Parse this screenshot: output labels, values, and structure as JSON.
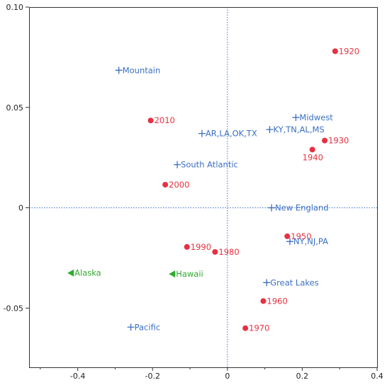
{
  "chart_data": {
    "type": "scatter",
    "title": "",
    "xlabel": "",
    "ylabel": "",
    "xlim": [
      -0.53,
      0.4
    ],
    "ylim": [
      -0.0795,
      0.1
    ],
    "x_ticks": [
      {
        "value": -0.4,
        "label": "-0.4"
      },
      {
        "value": -0.2,
        "label": "-0.2"
      },
      {
        "value": 0,
        "label": "0"
      },
      {
        "value": 0.2,
        "label": "0.2"
      },
      {
        "value": 0.4,
        "label": "0.4"
      }
    ],
    "x_minor_ticks": [
      -0.5,
      -0.3,
      -0.1,
      0.1,
      0.3
    ],
    "y_ticks": [
      {
        "value": 0.1,
        "label": "0.10"
      },
      {
        "value": 0.05,
        "label": "0.05"
      },
      {
        "value": 0,
        "label": "0"
      },
      {
        "value": -0.05,
        "label": "-0.05"
      }
    ],
    "reference_lines": {
      "x": 0,
      "y": 0,
      "style": "dotted",
      "color": "#3a6fc4"
    },
    "grid": false,
    "legend": "none",
    "series": [
      {
        "marker": "circle",
        "color": "#e8303f",
        "points": [
          {
            "label": "1920",
            "x": 0.288,
            "y": 0.078
          },
          {
            "label": "1930",
            "x": 0.26,
            "y": 0.0335
          },
          {
            "label": "1940",
            "x": 0.227,
            "y": 0.029
          },
          {
            "label": "1950",
            "x": 0.16,
            "y": -0.0142
          },
          {
            "label": "1960",
            "x": 0.096,
            "y": -0.0465
          },
          {
            "label": "1970",
            "x": 0.048,
            "y": -0.06
          },
          {
            "label": "1980",
            "x": -0.033,
            "y": -0.022
          },
          {
            "label": "1990",
            "x": -0.108,
            "y": -0.0195
          },
          {
            "label": "2000",
            "x": -0.166,
            "y": 0.0115
          },
          {
            "label": "2010",
            "x": -0.205,
            "y": 0.0435
          }
        ]
      },
      {
        "marker": "plus",
        "color": "#3a6fc4",
        "points": [
          {
            "label": "Mountain",
            "x": -0.29,
            "y": 0.0685
          },
          {
            "label": "Midwest",
            "x": 0.183,
            "y": 0.045
          },
          {
            "label": "KY,TN,AL,MS",
            "x": 0.113,
            "y": 0.039
          },
          {
            "label": "AR,LA,OK,TX",
            "x": -0.068,
            "y": 0.037
          },
          {
            "label": "South Atlantic",
            "x": -0.134,
            "y": 0.0215
          },
          {
            "label": "New England",
            "x": 0.118,
            "y": 0
          },
          {
            "label": "NY,NJ,PA",
            "x": 0.167,
            "y": -0.0168
          },
          {
            "label": "Great Lakes",
            "x": 0.105,
            "y": -0.0373
          },
          {
            "label": "Pacific",
            "x": -0.258,
            "y": -0.0595
          }
        ]
      },
      {
        "marker": "triangle-left",
        "color": "#2eaa2e",
        "points": [
          {
            "label": "Alaska",
            "x": -0.418,
            "y": -0.0325
          },
          {
            "label": "Hawaii",
            "x": -0.147,
            "y": -0.033
          }
        ]
      }
    ]
  }
}
